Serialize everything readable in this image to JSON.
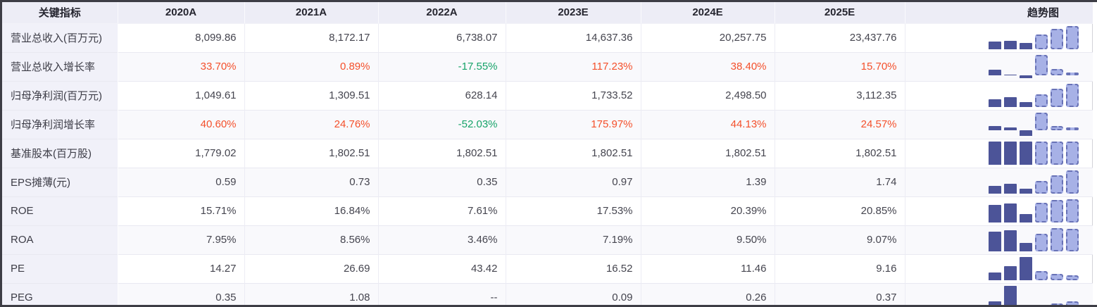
{
  "table": {
    "indicator_header": "关键指标",
    "year_columns": [
      "2020A",
      "2021A",
      "2022A",
      "2023E",
      "2024E",
      "2025E"
    ],
    "trend_header": "趋势图",
    "rows": [
      {
        "label": "营业总收入(百万元)",
        "values": [
          "8,099.86",
          "8,172.17",
          "6,738.07",
          "14,637.36",
          "20,257.75",
          "23,437.76"
        ],
        "numeric": [
          8099.86,
          8172.17,
          6738.07,
          14637.36,
          20257.75,
          23437.76
        ]
      },
      {
        "label": "营业总收入增长率",
        "values": [
          "33.70%",
          "0.89%",
          "-17.55%",
          "117.23%",
          "38.40%",
          "15.70%"
        ],
        "numeric": [
          33.7,
          0.89,
          -17.55,
          117.23,
          38.4,
          15.7
        ],
        "tones": [
          "up",
          "up",
          "down",
          "up",
          "up",
          "up"
        ]
      },
      {
        "label": "归母净利润(百万元)",
        "values": [
          "1,049.61",
          "1,309.51",
          "628.14",
          "1,733.52",
          "2,498.50",
          "3,112.35"
        ],
        "numeric": [
          1049.61,
          1309.51,
          628.14,
          1733.52,
          2498.5,
          3112.35
        ]
      },
      {
        "label": "归母净利润增长率",
        "values": [
          "40.60%",
          "24.76%",
          "-52.03%",
          "175.97%",
          "44.13%",
          "24.57%"
        ],
        "numeric": [
          40.6,
          24.76,
          -52.03,
          175.97,
          44.13,
          24.57
        ],
        "tones": [
          "up",
          "up",
          "down",
          "up",
          "up",
          "up"
        ]
      },
      {
        "label": "基准股本(百万股)",
        "values": [
          "1,779.02",
          "1,802.51",
          "1,802.51",
          "1,802.51",
          "1,802.51",
          "1,802.51"
        ],
        "numeric": [
          1779.02,
          1802.51,
          1802.51,
          1802.51,
          1802.51,
          1802.51
        ]
      },
      {
        "label": "EPS摊薄(元)",
        "values": [
          "0.59",
          "0.73",
          "0.35",
          "0.97",
          "1.39",
          "1.74"
        ],
        "numeric": [
          0.59,
          0.73,
          0.35,
          0.97,
          1.39,
          1.74
        ]
      },
      {
        "label": "ROE",
        "values": [
          "15.71%",
          "16.84%",
          "7.61%",
          "17.53%",
          "20.39%",
          "20.85%"
        ],
        "numeric": [
          15.71,
          16.84,
          7.61,
          17.53,
          20.39,
          20.85
        ]
      },
      {
        "label": "ROA",
        "values": [
          "7.95%",
          "8.56%",
          "3.46%",
          "7.19%",
          "9.50%",
          "9.07%"
        ],
        "numeric": [
          7.95,
          8.56,
          3.46,
          7.19,
          9.5,
          9.07
        ]
      },
      {
        "label": "PE",
        "values": [
          "14.27",
          "26.69",
          "43.42",
          "16.52",
          "11.46",
          "9.16"
        ],
        "numeric": [
          14.27,
          26.69,
          43.42,
          16.52,
          11.46,
          9.16
        ]
      },
      {
        "label": "PEG",
        "values": [
          "0.35",
          "1.08",
          "--",
          "0.09",
          "0.26",
          "0.37"
        ],
        "numeric": [
          0.35,
          1.08,
          null,
          0.09,
          0.26,
          0.37
        ]
      }
    ]
  },
  "colors": {
    "positive_text": "#f4502b",
    "negative_text": "#16a369",
    "bar_actual": "#4c5498",
    "bar_estimate_fill": "#a7b1e6",
    "bar_estimate_border": "#6872b6",
    "header_bg": "#ededf6",
    "label_column_bg": "#f1f1f9",
    "alt_row_bg": "#f9f9fc",
    "frame_border": "#3d3d45"
  }
}
